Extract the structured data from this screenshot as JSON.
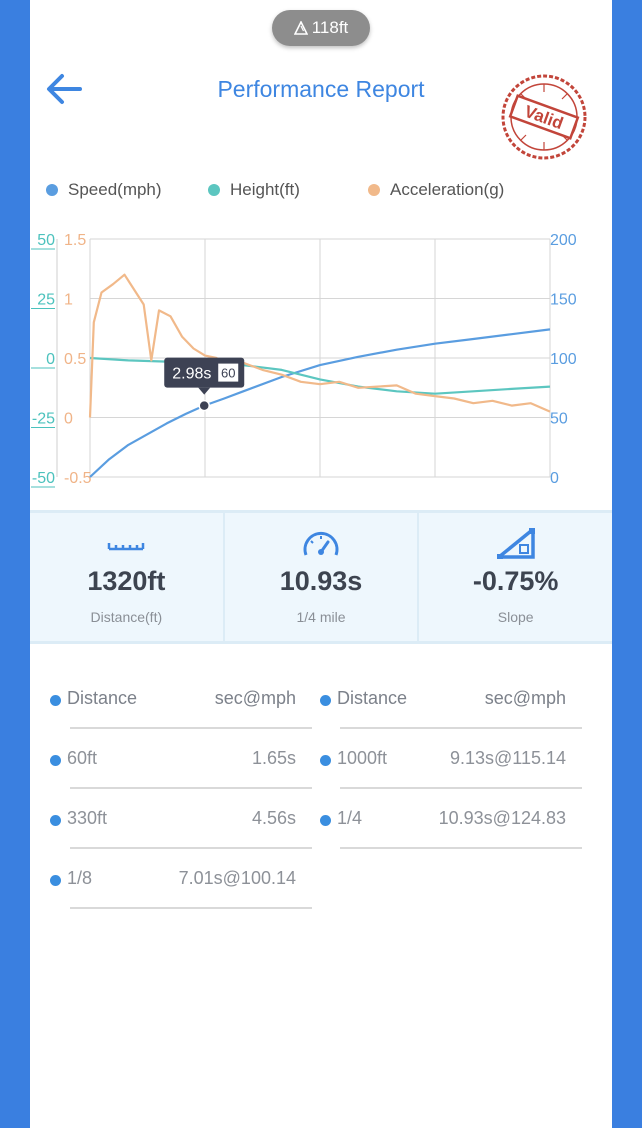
{
  "elevation_badge": {
    "label": "118ft"
  },
  "header": {
    "title": "Performance Report",
    "stamp_text": "Valid"
  },
  "legend": [
    {
      "label": "Speed(mph)",
      "color": "#5a9de0"
    },
    {
      "label": "Height(ft)",
      "color": "#5cc6c0"
    },
    {
      "label": "Acceleration(g)",
      "color": "#f1b98a"
    }
  ],
  "chart_data": {
    "type": "line",
    "x_range": [
      0,
      12
    ],
    "height_axis": {
      "ticks": [
        "50",
        "25",
        "0",
        "-25",
        "-50"
      ],
      "color": "#4cc2bd",
      "range": [
        -50,
        50
      ]
    },
    "accel_axis": {
      "ticks": [
        "1.5",
        "1",
        "0.5",
        "0",
        "-0.5"
      ],
      "color": "#f0b488",
      "range": [
        -0.5,
        1.5
      ]
    },
    "speed_axis": {
      "ticks": [
        "200",
        "150",
        "100",
        "50",
        "0"
      ],
      "color": "#5a9de0",
      "range": [
        0,
        200
      ]
    },
    "series": [
      {
        "name": "Speed(mph)",
        "color": "#5a9de0",
        "x": [
          0,
          0.5,
          1,
          1.5,
          2,
          2.5,
          2.98,
          3.5,
          4,
          5,
          6,
          7,
          8,
          9,
          10,
          11,
          12
        ],
        "y": [
          0,
          15,
          27,
          36,
          45,
          53,
          60,
          66,
          72,
          84,
          94,
          101,
          107,
          112,
          116,
          120,
          124
        ]
      },
      {
        "name": "Height(ft)",
        "color": "#5cc6c0",
        "x": [
          0,
          1,
          2,
          3,
          4,
          5,
          6,
          7,
          8,
          9,
          10,
          11,
          12
        ],
        "y": [
          0,
          -1,
          -1.5,
          -2,
          -3,
          -5,
          -9,
          -12,
          -14,
          -15,
          -14,
          -13,
          -12
        ]
      },
      {
        "name": "Acceleration(g)",
        "color": "#f1b98a",
        "x": [
          0,
          0.1,
          0.3,
          0.6,
          0.9,
          1.1,
          1.4,
          1.6,
          1.8,
          2.1,
          2.4,
          2.7,
          3.0,
          3.3,
          3.6,
          4.0,
          4.5,
          5.0,
          5.5,
          6.0,
          6.5,
          7.0,
          7.5,
          8.0,
          8.5,
          9.0,
          9.5,
          10.0,
          10.5,
          11.0,
          11.5,
          12.0
        ],
        "y": [
          0,
          0.8,
          1.05,
          1.12,
          1.2,
          1.1,
          0.95,
          0.48,
          0.9,
          0.85,
          0.68,
          0.58,
          0.52,
          0.5,
          0.42,
          0.46,
          0.4,
          0.36,
          0.3,
          0.28,
          0.3,
          0.25,
          0.26,
          0.27,
          0.2,
          0.18,
          0.16,
          0.12,
          0.14,
          0.1,
          0.12,
          0.05
        ]
      }
    ],
    "tooltip": {
      "time": "2.98s",
      "value": "60",
      "x": 2.98,
      "speed": 60
    }
  },
  "stats": [
    {
      "icon": "ruler-icon",
      "value": "1320ft",
      "label": "Distance(ft)"
    },
    {
      "icon": "speedometer-icon",
      "value": "10.93s",
      "label": "1/4 mile"
    },
    {
      "icon": "slope-icon",
      "value": "-0.75%",
      "label": "Slope"
    }
  ],
  "splits": {
    "header": {
      "key": "Distance",
      "value": "sec@mph"
    },
    "left": [
      {
        "key": "60ft",
        "value": "1.65s"
      },
      {
        "key": "330ft",
        "value": "4.56s"
      },
      {
        "key": "1/8",
        "value": "7.01s@100.14"
      }
    ],
    "right": [
      {
        "key": "1000ft",
        "value": "9.13s@115.14"
      },
      {
        "key": "1/4",
        "value": "10.93s@124.83"
      }
    ]
  }
}
